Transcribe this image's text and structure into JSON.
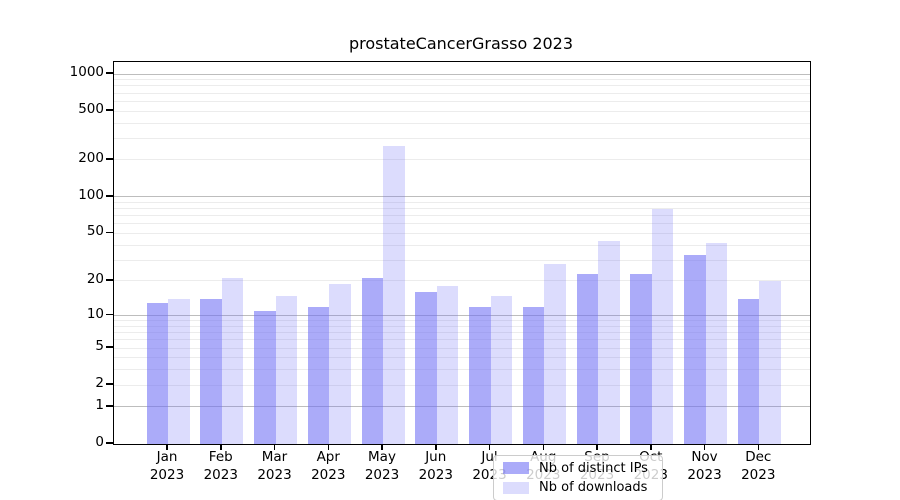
{
  "chart_data": {
    "type": "bar",
    "title": "prostateCancerGrasso 2023",
    "categories": [
      "Jan 2023",
      "Feb 2023",
      "Mar 2023",
      "Apr 2023",
      "May 2023",
      "Jun 2023",
      "Jul 2023",
      "Aug 2023",
      "Sep 2023",
      "Oct 2023",
      "Nov 2023",
      "Dec 2023"
    ],
    "months": [
      "Jan",
      "Feb",
      "Mar",
      "Apr",
      "May",
      "Jun",
      "Jul",
      "Aug",
      "Sep",
      "Oct",
      "Nov",
      "Dec"
    ],
    "year": "2023",
    "series": [
      {
        "name": "Nb of distinct IPs",
        "color": "rgba(110,110,245,0.58)",
        "values": [
          13,
          14,
          11,
          12,
          21,
          16,
          12,
          12,
          23,
          23,
          33,
          14
        ]
      },
      {
        "name": "Nb of downloads",
        "color": "rgba(110,110,245,0.24)",
        "values": [
          14,
          21,
          15,
          19,
          260,
          18,
          15,
          28,
          43,
          80,
          42,
          20
        ]
      }
    ],
    "xlabel": "",
    "ylabel": "",
    "yticks": [
      0,
      1,
      2,
      5,
      10,
      20,
      50,
      100,
      200,
      500,
      1000
    ],
    "ylim": [
      0,
      1252
    ],
    "scale": "log10(value+1)",
    "grid": "on",
    "grid_major_at": [
      1,
      10,
      100,
      1000
    ],
    "legend_position": "inside-bottom-center",
    "colors": {
      "grid_major": "#bdbdbd",
      "grid_minor": "#ececec",
      "axis": "#000000",
      "background": "#ffffff"
    }
  }
}
